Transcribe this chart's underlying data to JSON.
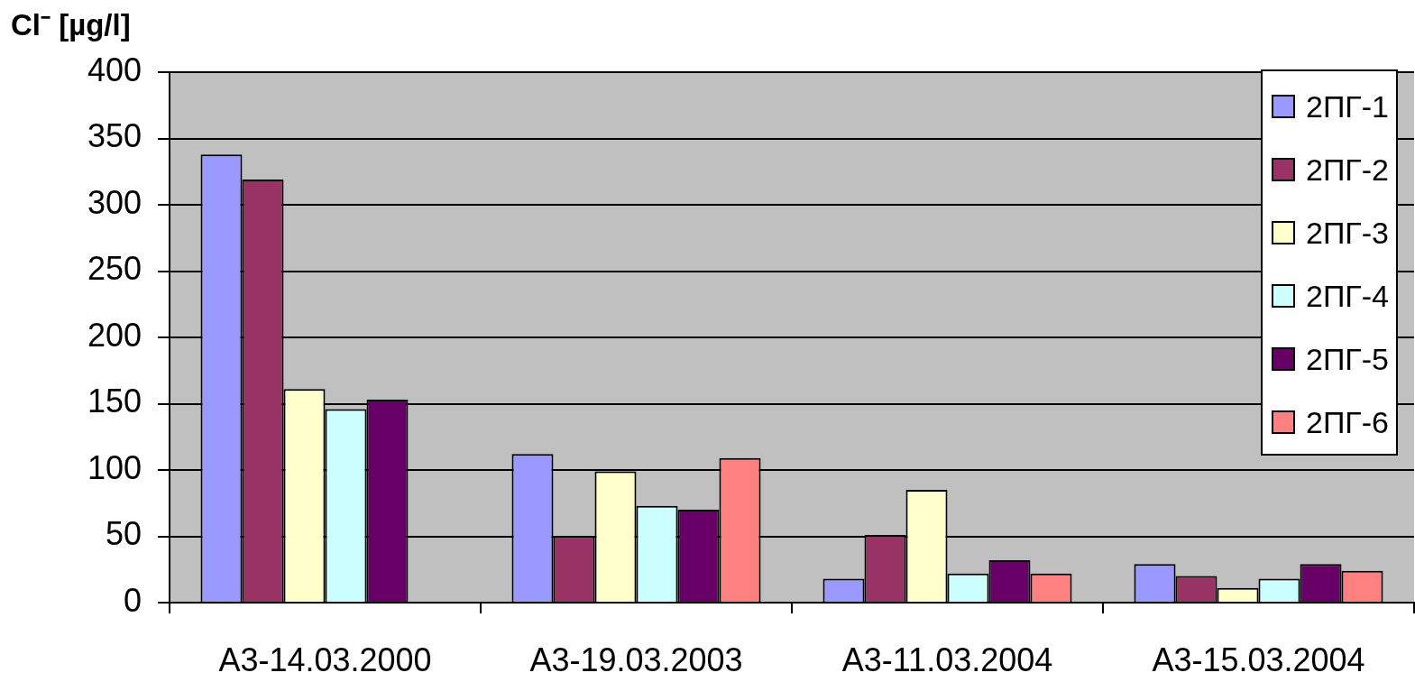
{
  "chart_data": {
    "type": "bar",
    "ylabel": "Cl⁻ [µg/l]",
    "categories": [
      "A3-14.03.2000",
      "A3-19.03.2003",
      "A3-11.03.2004",
      "A3-15.03.2004"
    ],
    "series": [
      {
        "name": "2ПГ-1",
        "color": "#9999ff",
        "values": [
          338,
          112,
          18,
          29
        ]
      },
      {
        "name": "2ПГ-2",
        "color": "#993366",
        "values": [
          319,
          50,
          51,
          20
        ]
      },
      {
        "name": "2ПГ-3",
        "color": "#ffffcc",
        "values": [
          161,
          99,
          85,
          11
        ]
      },
      {
        "name": "2ПГ-4",
        "color": "#ccffff",
        "values": [
          146,
          73,
          22,
          18
        ]
      },
      {
        "name": "2ПГ-5",
        "color": "#660066",
        "values": [
          153,
          70,
          32,
          29
        ]
      },
      {
        "name": "2ПГ-6",
        "color": "#ff8080",
        "values": [
          null,
          109,
          22,
          24
        ]
      }
    ],
    "ylim": [
      0,
      400
    ],
    "yticks": [
      0,
      50,
      100,
      150,
      200,
      250,
      300,
      350,
      400
    ],
    "grid": "y",
    "legend": "top right"
  }
}
